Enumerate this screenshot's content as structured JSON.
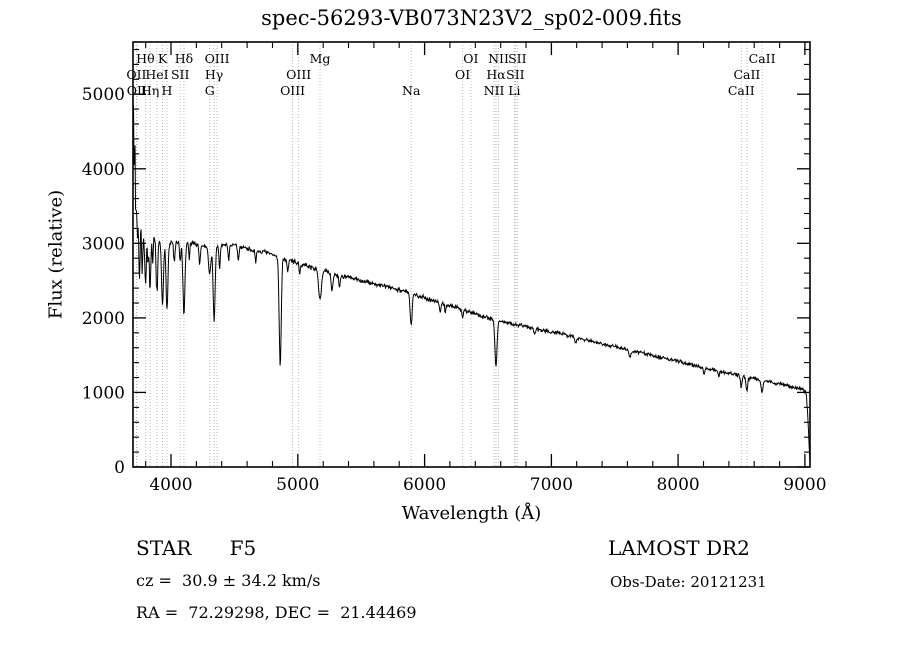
{
  "title": "spec-56293-VB073N23V2_sp02-009.fits",
  "footer": {
    "class_line": "STAR      F5",
    "survey_line": "LAMOST DR2",
    "cz_line": "cz =  30.9 ± 34.2 km/s",
    "obsdate_line": "Obs-Date: 20121231",
    "radec_line": "RA =  72.29298, DEC =  21.44469"
  },
  "chart_data": {
    "type": "line",
    "title": "spec-56293-VB073N23V2_sp02-009.fits",
    "xlabel": "Wavelength (Å)",
    "ylabel": "Flux (relative)",
    "xlim": [
      3700,
      9040
    ],
    "ylim": [
      0,
      5700
    ],
    "x_major_ticks": [
      4000,
      5000,
      6000,
      7000,
      8000,
      9000
    ],
    "y_major_ticks": [
      0,
      1000,
      2000,
      3000,
      4000,
      5000
    ],
    "x_minor_step": 200,
    "y_minor_step": 200,
    "grid": false,
    "legend": false,
    "line_color": "#000000",
    "annotation_line_color": "#bfb3b3",
    "spectral_lines": [
      {
        "label": "Hθ",
        "wavelength": 3798,
        "row": 1
      },
      {
        "label": "K",
        "wavelength": 3933,
        "row": 1
      },
      {
        "label": "Hδ",
        "wavelength": 4102,
        "row": 1
      },
      {
        "label": "OIII",
        "wavelength": 4363,
        "row": 1
      },
      {
        "label": "Mg",
        "wavelength": 5175,
        "row": 1
      },
      {
        "label": "OI",
        "wavelength": 6365,
        "row": 1
      },
      {
        "label": "NII",
        "wavelength": 6583,
        "row": 1
      },
      {
        "label": "SII",
        "wavelength": 6731,
        "row": 1
      },
      {
        "label": "CaII",
        "wavelength": 8662,
        "row": 1
      },
      {
        "label": "OII",
        "wavelength": 3727,
        "row": 2
      },
      {
        "label": "HeI",
        "wavelength": 3889,
        "row": 2
      },
      {
        "label": "SII",
        "wavelength": 4072,
        "row": 2
      },
      {
        "label": "Hγ",
        "wavelength": 4340,
        "row": 2
      },
      {
        "label": "OIII",
        "wavelength": 5007,
        "row": 2
      },
      {
        "label": "OI",
        "wavelength": 6300,
        "row": 2
      },
      {
        "label": "Hα",
        "wavelength": 6563,
        "row": 2
      },
      {
        "label": "SII",
        "wavelength": 6716,
        "row": 2
      },
      {
        "label": "CaII",
        "wavelength": 8542,
        "row": 2
      },
      {
        "label": "OII",
        "wavelength": 3730,
        "row": 3
      },
      {
        "label": "Hη",
        "wavelength": 3835,
        "row": 3
      },
      {
        "label": "H",
        "wavelength": 3968,
        "row": 3
      },
      {
        "label": "G",
        "wavelength": 4305,
        "row": 3
      },
      {
        "label": "OIII",
        "wavelength": 4959,
        "row": 3
      },
      {
        "label": "Na",
        "wavelength": 5894,
        "row": 3
      },
      {
        "label": "NII",
        "wavelength": 6548,
        "row": 3
      },
      {
        "label": "Li",
        "wavelength": 6708,
        "row": 3
      },
      {
        "label": "CaII",
        "wavelength": 8498,
        "row": 3
      }
    ],
    "series": [
      {
        "name": "spectrum",
        "encoding": "continuum+absorption+noise",
        "sample_step": 4,
        "noise_seed": 7,
        "noise_zones": [
          [
            3780,
            200
          ],
          [
            3900,
            100
          ],
          [
            4100,
            60
          ],
          [
            7000,
            38
          ],
          [
            8500,
            30
          ],
          [
            9040,
            34
          ]
        ],
        "continuum_points": [
          [
            3700,
            4250
          ],
          [
            3704,
            4720
          ],
          [
            3709,
            3900
          ],
          [
            3715,
            4420
          ],
          [
            3721,
            3500
          ],
          [
            3728,
            3850
          ],
          [
            3736,
            3050
          ],
          [
            3744,
            3400
          ],
          [
            3752,
            2850
          ],
          [
            3762,
            3250
          ],
          [
            3772,
            2950
          ],
          [
            3784,
            3120
          ],
          [
            3800,
            3060
          ],
          [
            3830,
            3060
          ],
          [
            3870,
            3040
          ],
          [
            3910,
            3000
          ],
          [
            3960,
            2960
          ],
          [
            4010,
            3010
          ],
          [
            4080,
            3000
          ],
          [
            4160,
            3000
          ],
          [
            4260,
            2960
          ],
          [
            4360,
            2970
          ],
          [
            4460,
            2980
          ],
          [
            4560,
            2950
          ],
          [
            4660,
            2905
          ],
          [
            4760,
            2870
          ],
          [
            4861,
            2810
          ],
          [
            4960,
            2760
          ],
          [
            5060,
            2705
          ],
          [
            5175,
            2640
          ],
          [
            5300,
            2585
          ],
          [
            5450,
            2520
          ],
          [
            5600,
            2455
          ],
          [
            5750,
            2400
          ],
          [
            5894,
            2335
          ],
          [
            6010,
            2265
          ],
          [
            6160,
            2185
          ],
          [
            6310,
            2105
          ],
          [
            6460,
            2025
          ],
          [
            6563,
            1965
          ],
          [
            6700,
            1915
          ],
          [
            6850,
            1870
          ],
          [
            7000,
            1815
          ],
          [
            7150,
            1760
          ],
          [
            7300,
            1695
          ],
          [
            7450,
            1635
          ],
          [
            7600,
            1575
          ],
          [
            7750,
            1515
          ],
          [
            7900,
            1455
          ],
          [
            8050,
            1395
          ],
          [
            8200,
            1335
          ],
          [
            8350,
            1275
          ],
          [
            8500,
            1225
          ],
          [
            8650,
            1170
          ],
          [
            8800,
            1115
          ],
          [
            8950,
            1055
          ],
          [
            9000,
            1025
          ],
          [
            9012,
            960
          ],
          [
            9022,
            700
          ],
          [
            9032,
            320
          ],
          [
            9040,
            60
          ]
        ],
        "absorption_lines": [
          [
            3727,
            350,
            4
          ],
          [
            3750,
            420,
            5
          ],
          [
            3770,
            380,
            4
          ],
          [
            3798,
            600,
            6
          ],
          [
            3819,
            320,
            4
          ],
          [
            3835,
            700,
            6
          ],
          [
            3856,
            300,
            4
          ],
          [
            3889,
            700,
            6
          ],
          [
            3933,
            850,
            7
          ],
          [
            3968,
            840,
            7
          ],
          [
            4026,
            280,
            5
          ],
          [
            4072,
            260,
            5
          ],
          [
            4102,
            950,
            8
          ],
          [
            4144,
            220,
            4
          ],
          [
            4226,
            260,
            5
          ],
          [
            4305,
            380,
            9
          ],
          [
            4340,
            1000,
            8
          ],
          [
            4383,
            320,
            5
          ],
          [
            4455,
            200,
            5
          ],
          [
            4531,
            200,
            5
          ],
          [
            4668,
            180,
            5
          ],
          [
            4861,
            1450,
            8
          ],
          [
            4920,
            180,
            5
          ],
          [
            5015,
            160,
            5
          ],
          [
            5175,
            380,
            11
          ],
          [
            5270,
            220,
            8
          ],
          [
            5329,
            160,
            6
          ],
          [
            5894,
            440,
            8
          ],
          [
            6122,
            120,
            6
          ],
          [
            6163,
            100,
            5
          ],
          [
            6300,
            110,
            5
          ],
          [
            6563,
            620,
            8
          ],
          [
            6867,
            90,
            6
          ],
          [
            7190,
            70,
            8
          ],
          [
            7620,
            90,
            10
          ],
          [
            8205,
            80,
            6
          ],
          [
            8320,
            70,
            5
          ],
          [
            8498,
            150,
            6
          ],
          [
            8542,
            190,
            7
          ],
          [
            8662,
            170,
            7
          ]
        ]
      }
    ]
  }
}
